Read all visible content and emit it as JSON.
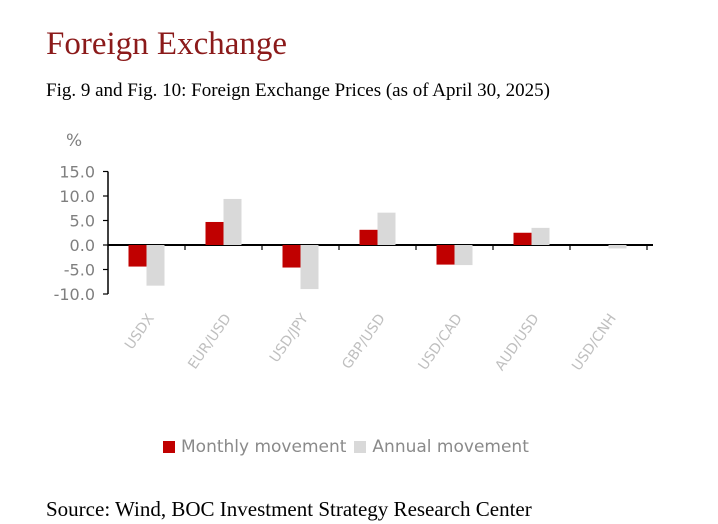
{
  "header": {
    "title": "Foreign Exchange",
    "subtitle": "Fig. 9 and Fig. 10: Foreign Exchange Prices (as of April 30, 2025)"
  },
  "footer": {
    "source": "Source: Wind, BOC Investment Strategy Research Center"
  },
  "chart_data": {
    "type": "bar",
    "ylabel": "%",
    "ylim": [
      -10,
      15
    ],
    "yticks": [
      15,
      10,
      5,
      0,
      -5,
      -10
    ],
    "ytick_labels": [
      "15.0",
      "10.0",
      "5.0",
      "0.0",
      "-5.0",
      "-10.0"
    ],
    "categories": [
      "USDX",
      "EUR/USD",
      "USD/JPY",
      "GBP/USD",
      "USD/CAD",
      "AUD/USD",
      "USD/CNH"
    ],
    "series": [
      {
        "name": "Monthly movement",
        "color": "#c00000",
        "values": [
          -4.4,
          4.7,
          -4.6,
          3.1,
          -4.0,
          2.5,
          0.0
        ]
      },
      {
        "name": "Annual movement",
        "color": "#d9d9d9",
        "values": [
          -8.3,
          9.4,
          -9.0,
          6.6,
          -4.1,
          3.5,
          -0.7
        ]
      }
    ],
    "legend_position": "bottom",
    "grid": false
  }
}
